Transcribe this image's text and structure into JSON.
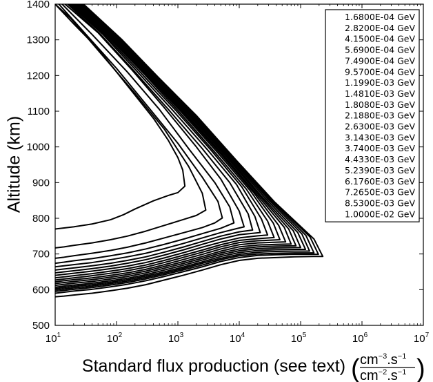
{
  "chart_data": {
    "type": "line",
    "xlabel": "Standard flux production (see text)",
    "xlabel_units": {
      "num_base": "cm",
      "num_exp": "−3",
      "num_mid": ".s",
      "num_exp2": "−1",
      "den_base": "cm",
      "den_exp": "−2",
      "den_mid": ".s",
      "den_exp2": "−1"
    },
    "ylabel": "Altitude (km)",
    "x_scale": "log",
    "xlim": [
      10,
      10000000
    ],
    "ylim": [
      500,
      1400
    ],
    "x_ticks": [
      {
        "base": "10",
        "exp": "1"
      },
      {
        "base": "10",
        "exp": "2"
      },
      {
        "base": "10",
        "exp": "3"
      },
      {
        "base": "10",
        "exp": "4"
      },
      {
        "base": "10",
        "exp": "5"
      },
      {
        "base": "10",
        "exp": "6"
      },
      {
        "base": "10",
        "exp": "7"
      }
    ],
    "y_ticks": [
      "500",
      "600",
      "700",
      "800",
      "900",
      "1000",
      "1100",
      "1200",
      "1300",
      "1400"
    ],
    "grid": false,
    "legend_position": "top-right",
    "series": [
      {
        "name": "1.6800E-04 GeV",
        "x": [
          10,
          14,
          20,
          40,
          80,
          130,
          200,
          400,
          700,
          1000,
          1300,
          1200,
          1000,
          700,
          400,
          200,
          100,
          50,
          20,
          10
        ],
        "y": [
          770,
          773,
          776,
          784,
          796,
          810,
          826,
          849,
          864,
          872,
          890,
          935,
          970,
          1018,
          1080,
          1145,
          1210,
          1275,
          1345,
          1400
        ]
      },
      {
        "name": "2.8200E-04 GeV",
        "x": [
          10,
          14,
          20,
          40,
          80,
          150,
          300,
          600,
          1200,
          2000,
          2850,
          2500,
          1500,
          600,
          200,
          60,
          18,
          10
        ],
        "y": [
          717,
          720,
          724,
          731,
          740,
          750,
          764,
          780,
          796,
          808,
          823,
          870,
          945,
          1050,
          1150,
          1255,
          1360,
          1400
        ]
      },
      {
        "name": "4.1500E-04 GeV",
        "x": [
          10,
          14,
          20,
          40,
          80,
          150,
          300,
          600,
          1200,
          2500,
          4000,
          5300,
          4500,
          2500,
          1000,
          300,
          100,
          30,
          11.5
        ],
        "y": [
          688,
          691,
          695,
          702,
          710,
          719,
          731,
          745,
          759,
          774,
          787,
          801,
          847,
          915,
          1010,
          1120,
          1220,
          1320,
          1400
        ]
      },
      {
        "name": "5.6900E-04 GeV",
        "x": [
          10,
          14,
          20,
          40,
          80,
          150,
          300,
          600,
          1200,
          2500,
          5000,
          8200,
          7000,
          4000,
          1500,
          500,
          150,
          40,
          13
        ],
        "y": [
          674,
          677,
          681,
          687,
          695,
          703,
          714,
          727,
          741,
          757,
          772,
          787,
          832,
          900,
          995,
          1105,
          1210,
          1315,
          1400
        ]
      },
      {
        "name": "7.4900E-04 GeV",
        "x": [
          10,
          14,
          20,
          40,
          80,
          150,
          300,
          600,
          1200,
          2500,
          5000,
          9000,
          12000,
          10000,
          5000,
          2000,
          600,
          180,
          50,
          14.5
        ],
        "y": [
          664,
          667,
          670,
          676,
          684,
          692,
          702,
          715,
          729,
          745,
          760,
          771,
          776,
          820,
          910,
          1000,
          1110,
          1215,
          1320,
          1400
        ]
      },
      {
        "name": "9.5700E-04 GeV",
        "x": [
          10,
          14,
          20,
          40,
          80,
          150,
          300,
          600,
          1200,
          2500,
          5000,
          10000,
          16500,
          14000,
          7000,
          2500,
          700,
          200,
          55,
          16
        ],
        "y": [
          655,
          658,
          661,
          667,
          674,
          682,
          692,
          705,
          719,
          735,
          750,
          762,
          767,
          812,
          900,
          995,
          1105,
          1210,
          1315,
          1400
        ]
      },
      {
        "name": "1.1990E-03 GeV",
        "x": [
          10,
          14,
          20,
          40,
          80,
          150,
          300,
          600,
          1200,
          2500,
          5000,
          10000,
          22000,
          18000,
          9000,
          3000,
          800,
          220,
          60,
          17
        ],
        "y": [
          647,
          650,
          653,
          659,
          666,
          674,
          684,
          697,
          711,
          727,
          742,
          754,
          760,
          805,
          895,
          993,
          1105,
          1210,
          1315,
          1400
        ]
      },
      {
        "name": "1.4810E-03 GeV",
        "x": [
          10,
          14,
          20,
          40,
          80,
          150,
          300,
          600,
          1200,
          2500,
          5000,
          10000,
          20000,
          29000,
          23000,
          11000,
          3500,
          950,
          250,
          65,
          18
        ],
        "y": [
          640,
          643,
          646,
          652,
          659,
          666,
          676,
          689,
          703,
          719,
          733,
          745,
          751,
          753,
          798,
          888,
          990,
          1100,
          1207,
          1313,
          1400
        ]
      },
      {
        "name": "1.8080E-03 GeV",
        "x": [
          10,
          14,
          20,
          40,
          80,
          150,
          300,
          600,
          1200,
          2500,
          5000,
          10000,
          20000,
          37000,
          29000,
          13000,
          4000,
          1050,
          280,
          70,
          19
        ],
        "y": [
          633,
          636,
          639,
          645,
          652,
          659,
          669,
          682,
          696,
          711,
          726,
          738,
          743,
          746,
          792,
          882,
          985,
          1098,
          1205,
          1312,
          1400
        ]
      },
      {
        "name": "2.1880E-03 GeV",
        "x": [
          10,
          14,
          20,
          40,
          80,
          150,
          300,
          600,
          1200,
          2500,
          5000,
          10000,
          20000,
          46000,
          36000,
          15000,
          4500,
          1150,
          300,
          75,
          20
        ],
        "y": [
          627,
          630,
          633,
          639,
          646,
          653,
          663,
          676,
          690,
          705,
          720,
          732,
          737,
          740,
          786,
          878,
          983,
          1097,
          1204,
          1311,
          1400
        ]
      },
      {
        "name": "2.6300E-03 GeV",
        "x": [
          10,
          14,
          20,
          40,
          80,
          150,
          300,
          600,
          1200,
          2500,
          5000,
          10000,
          20000,
          40000,
          57000,
          44000,
          17000,
          5000,
          1250,
          320,
          80,
          21
        ],
        "y": [
          622,
          625,
          628,
          633,
          640,
          647,
          657,
          670,
          684,
          699,
          714,
          726,
          731,
          733,
          734,
          780,
          873,
          980,
          1095,
          1203,
          1310,
          1400
        ]
      },
      {
        "name": "3.1430E-03 GeV",
        "x": [
          10,
          14,
          20,
          40,
          80,
          150,
          300,
          600,
          1200,
          2500,
          5000,
          10000,
          20000,
          40000,
          70000,
          54000,
          19000,
          5500,
          1350,
          340,
          85,
          22
        ],
        "y": [
          617,
          620,
          623,
          628,
          635,
          642,
          652,
          665,
          678,
          693,
          708,
          720,
          725,
          727,
          728,
          775,
          868,
          977,
          1093,
          1202,
          1309,
          1400
        ]
      },
      {
        "name": "3.7400E-03 GeV",
        "x": [
          10,
          14,
          20,
          40,
          80,
          150,
          300,
          600,
          1200,
          2500,
          5000,
          10000,
          20000,
          40000,
          84000,
          64000,
          21000,
          6000,
          1450,
          360,
          90,
          23
        ],
        "y": [
          612,
          615,
          618,
          623,
          630,
          637,
          647,
          660,
          673,
          688,
          703,
          714,
          720,
          722,
          723,
          770,
          865,
          975,
          1092,
          1201,
          1308,
          1400
        ]
      },
      {
        "name": "4.4330E-03 GeV",
        "x": [
          10,
          14,
          20,
          40,
          80,
          150,
          300,
          600,
          1200,
          2500,
          5000,
          10000,
          20000,
          40000,
          80000,
          100000,
          76000,
          23000,
          6500,
          1550,
          380,
          95,
          24
        ],
        "y": [
          607,
          610,
          613,
          618,
          625,
          632,
          642,
          655,
          668,
          683,
          698,
          709,
          715,
          717,
          718,
          718,
          765,
          862,
          973,
          1091,
          1200,
          1307,
          1400
        ]
      },
      {
        "name": "5.2390E-03 GeV",
        "x": [
          10,
          14,
          20,
          40,
          80,
          150,
          300,
          600,
          1200,
          2500,
          5000,
          10000,
          20000,
          40000,
          80000,
          120000,
          90000,
          26000,
          7000,
          1650,
          400,
          100,
          25
        ],
        "y": [
          603,
          606,
          609,
          614,
          621,
          628,
          638,
          650,
          663,
          678,
          693,
          704,
          710,
          712,
          713,
          713,
          760,
          858,
          971,
          1090,
          1199,
          1306,
          1400
        ]
      },
      {
        "name": "6.1760E-03 GeV",
        "x": [
          10,
          14,
          20,
          40,
          80,
          150,
          300,
          600,
          1200,
          2500,
          5000,
          10000,
          20000,
          40000,
          80000,
          140000,
          105000,
          29000,
          7500,
          1750,
          420,
          105,
          26
        ],
        "y": [
          599,
          602,
          605,
          610,
          617,
          624,
          634,
          646,
          659,
          674,
          688,
          699,
          705,
          707,
          708,
          708,
          756,
          855,
          969,
          1089,
          1198,
          1305,
          1400
        ]
      },
      {
        "name": "7.2650E-03 GeV",
        "x": [
          10,
          14,
          20,
          40,
          80,
          150,
          300,
          600,
          1200,
          2500,
          5000,
          10000,
          20000,
          40000,
          80000,
          165000,
          122000,
          32000,
          8000,
          1850,
          440,
          110,
          27
        ],
        "y": [
          595,
          598,
          601,
          606,
          613,
          620,
          630,
          642,
          655,
          669,
          684,
          695,
          700,
          702,
          703,
          703,
          752,
          852,
          967,
          1088,
          1197,
          1304,
          1400
        ]
      },
      {
        "name": "8.5300E-03 GeV",
        "x": [
          10,
          14,
          20,
          40,
          80,
          150,
          300,
          600,
          1200,
          2500,
          5000,
          10000,
          20000,
          40000,
          80000,
          160000,
          195000,
          142000,
          35000,
          8500,
          1950,
          460,
          115,
          28
        ],
        "y": [
          590,
          593,
          596,
          601,
          608,
          615,
          625,
          637,
          650,
          664,
          679,
          690,
          696,
          698,
          699,
          699,
          699,
          748,
          849,
          965,
          1087,
          1196,
          1303,
          1400
        ]
      },
      {
        "name": "1.0000E-02 GeV",
        "x": [
          10,
          14,
          20,
          40,
          80,
          150,
          300,
          600,
          1200,
          2500,
          5000,
          10000,
          20000,
          40000,
          80000,
          160000,
          230000,
          165000,
          38000,
          9000,
          2050,
          480,
          120,
          29
        ],
        "y": [
          580,
          582,
          585,
          590,
          597,
          604,
          614,
          627,
          640,
          655,
          670,
          682,
          688,
          690,
          692,
          693,
          693,
          742,
          845,
          962,
          1086,
          1195,
          1302,
          1400
        ]
      }
    ]
  }
}
